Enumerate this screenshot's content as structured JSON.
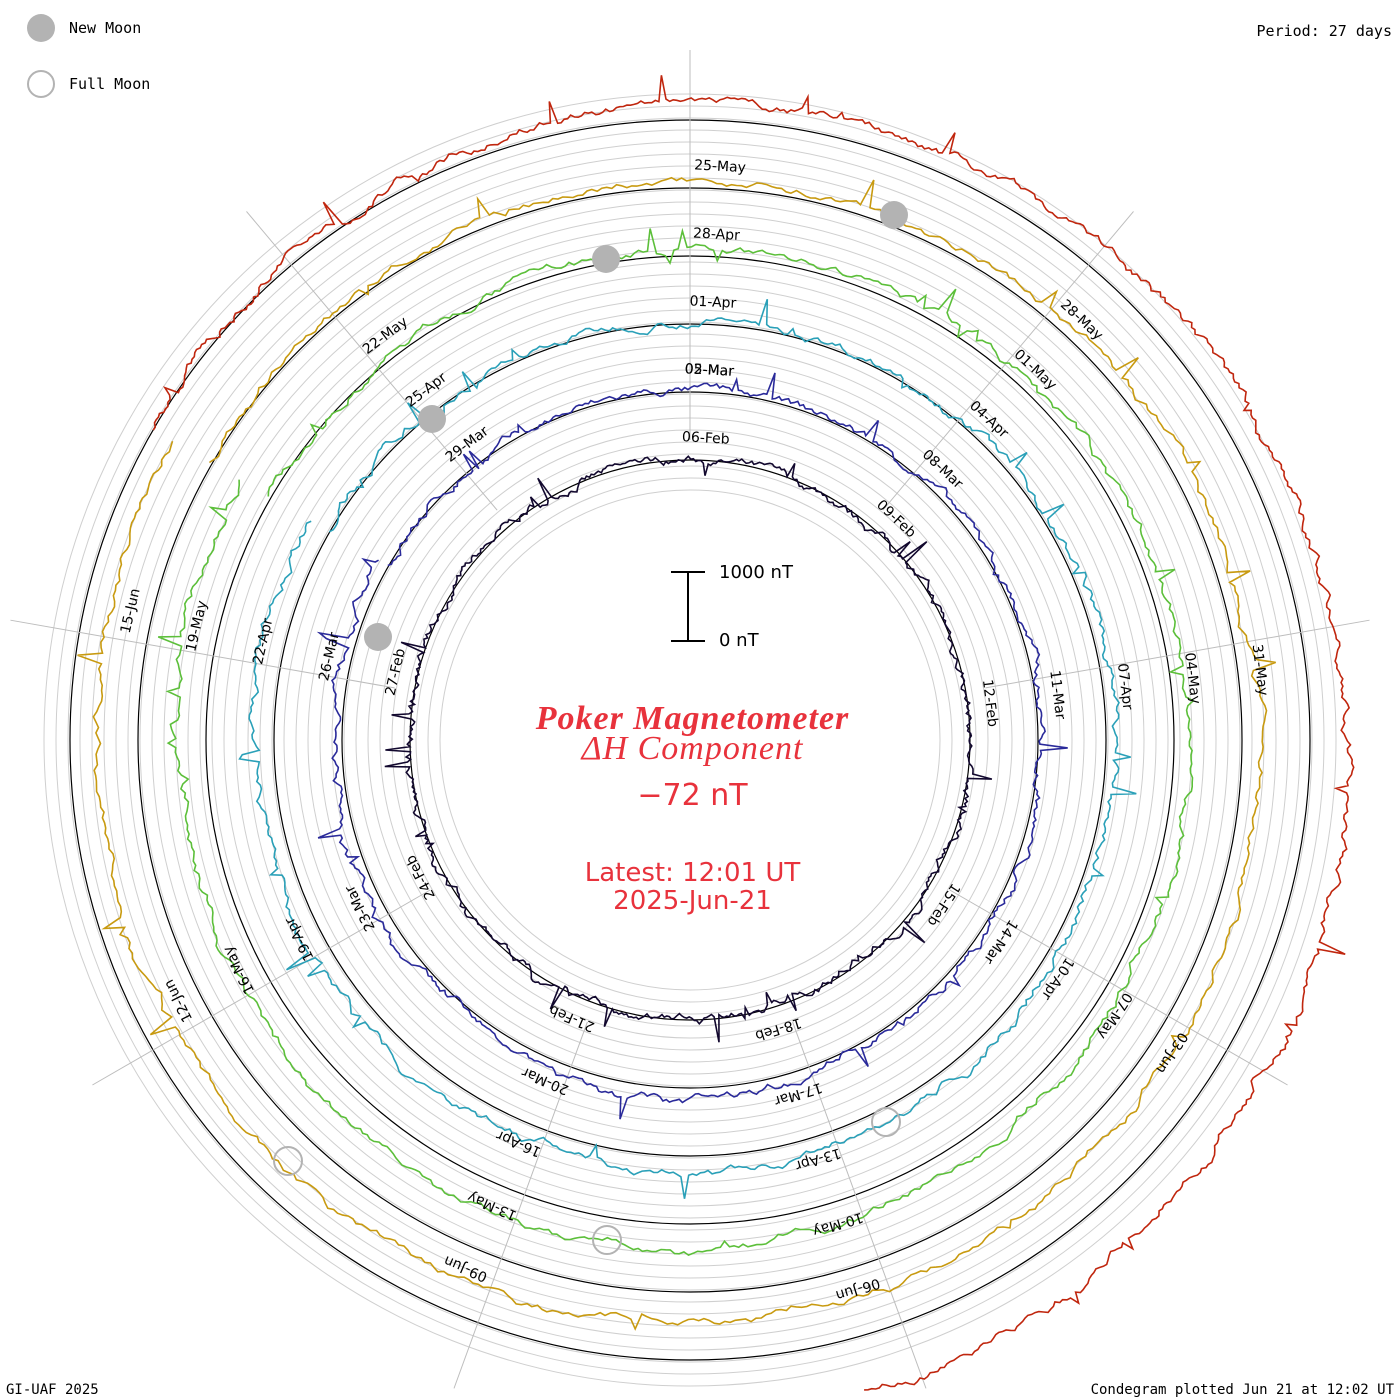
{
  "header": {
    "legend": [
      {
        "label": "New Moon",
        "icon": "new-moon-icon"
      },
      {
        "label": "Full Moon",
        "icon": "full-moon-icon"
      }
    ],
    "period": "Period: 27 days"
  },
  "titles": {
    "line1": "Poker Magnetometer",
    "line2": "ΔH Component",
    "value": "−72 nT",
    "latest": "Latest: 12:01 UT",
    "date": "2025‑Jun‑21"
  },
  "scale": {
    "top_label": "1000 nT",
    "bottom_label": "0 nT"
  },
  "footer": {
    "left": "GI-UAF 2025",
    "right": "Condegram plotted Jun 21 at 12:02 UT"
  },
  "chart_data": {
    "type": "line",
    "subtype": "condegram spiral",
    "period_days": 27,
    "series": [
      {
        "turn": 1,
        "color": "#12082e",
        "day_labels": [
          "06-Feb",
          "09-Feb",
          "12-Feb",
          "15-Feb",
          "18-Feb",
          "21-Feb",
          "24-Feb",
          "27-Feb"
        ]
      },
      {
        "turn": 2,
        "color": "#2a2a9a",
        "day_labels": [
          "05-Mar",
          "08-Mar",
          "11-Mar",
          "14-Mar",
          "17-Mar",
          "20-Mar",
          "23-Mar",
          "26-Mar",
          "29-Mar",
          "02-Mar"
        ]
      },
      {
        "turn": 3,
        "color": "#2aa0b8",
        "day_labels": [
          "01-Apr",
          "04-Apr",
          "07-Apr",
          "10-Apr",
          "13-Apr",
          "16-Apr",
          "19-Apr",
          "22-Apr",
          "25-Apr"
        ]
      },
      {
        "turn": 4,
        "color": "#5cbf3a",
        "day_labels": [
          "28-Apr",
          "01-May",
          "04-May",
          "07-May",
          "10-May",
          "13-May",
          "16-May",
          "19-May",
          "22-May"
        ]
      },
      {
        "turn": 5,
        "color": "#c89a10",
        "day_labels": [
          "25-May",
          "28-May",
          "31-May",
          "03-Jun",
          "06-Jun",
          "09-Jun",
          "12-Jun",
          "15-Jun"
        ]
      },
      {
        "turn": 6,
        "color": "#c0260e",
        "day_labels": []
      }
    ],
    "units": "nT",
    "scale_bar": [
      0,
      1000
    ]
  }
}
